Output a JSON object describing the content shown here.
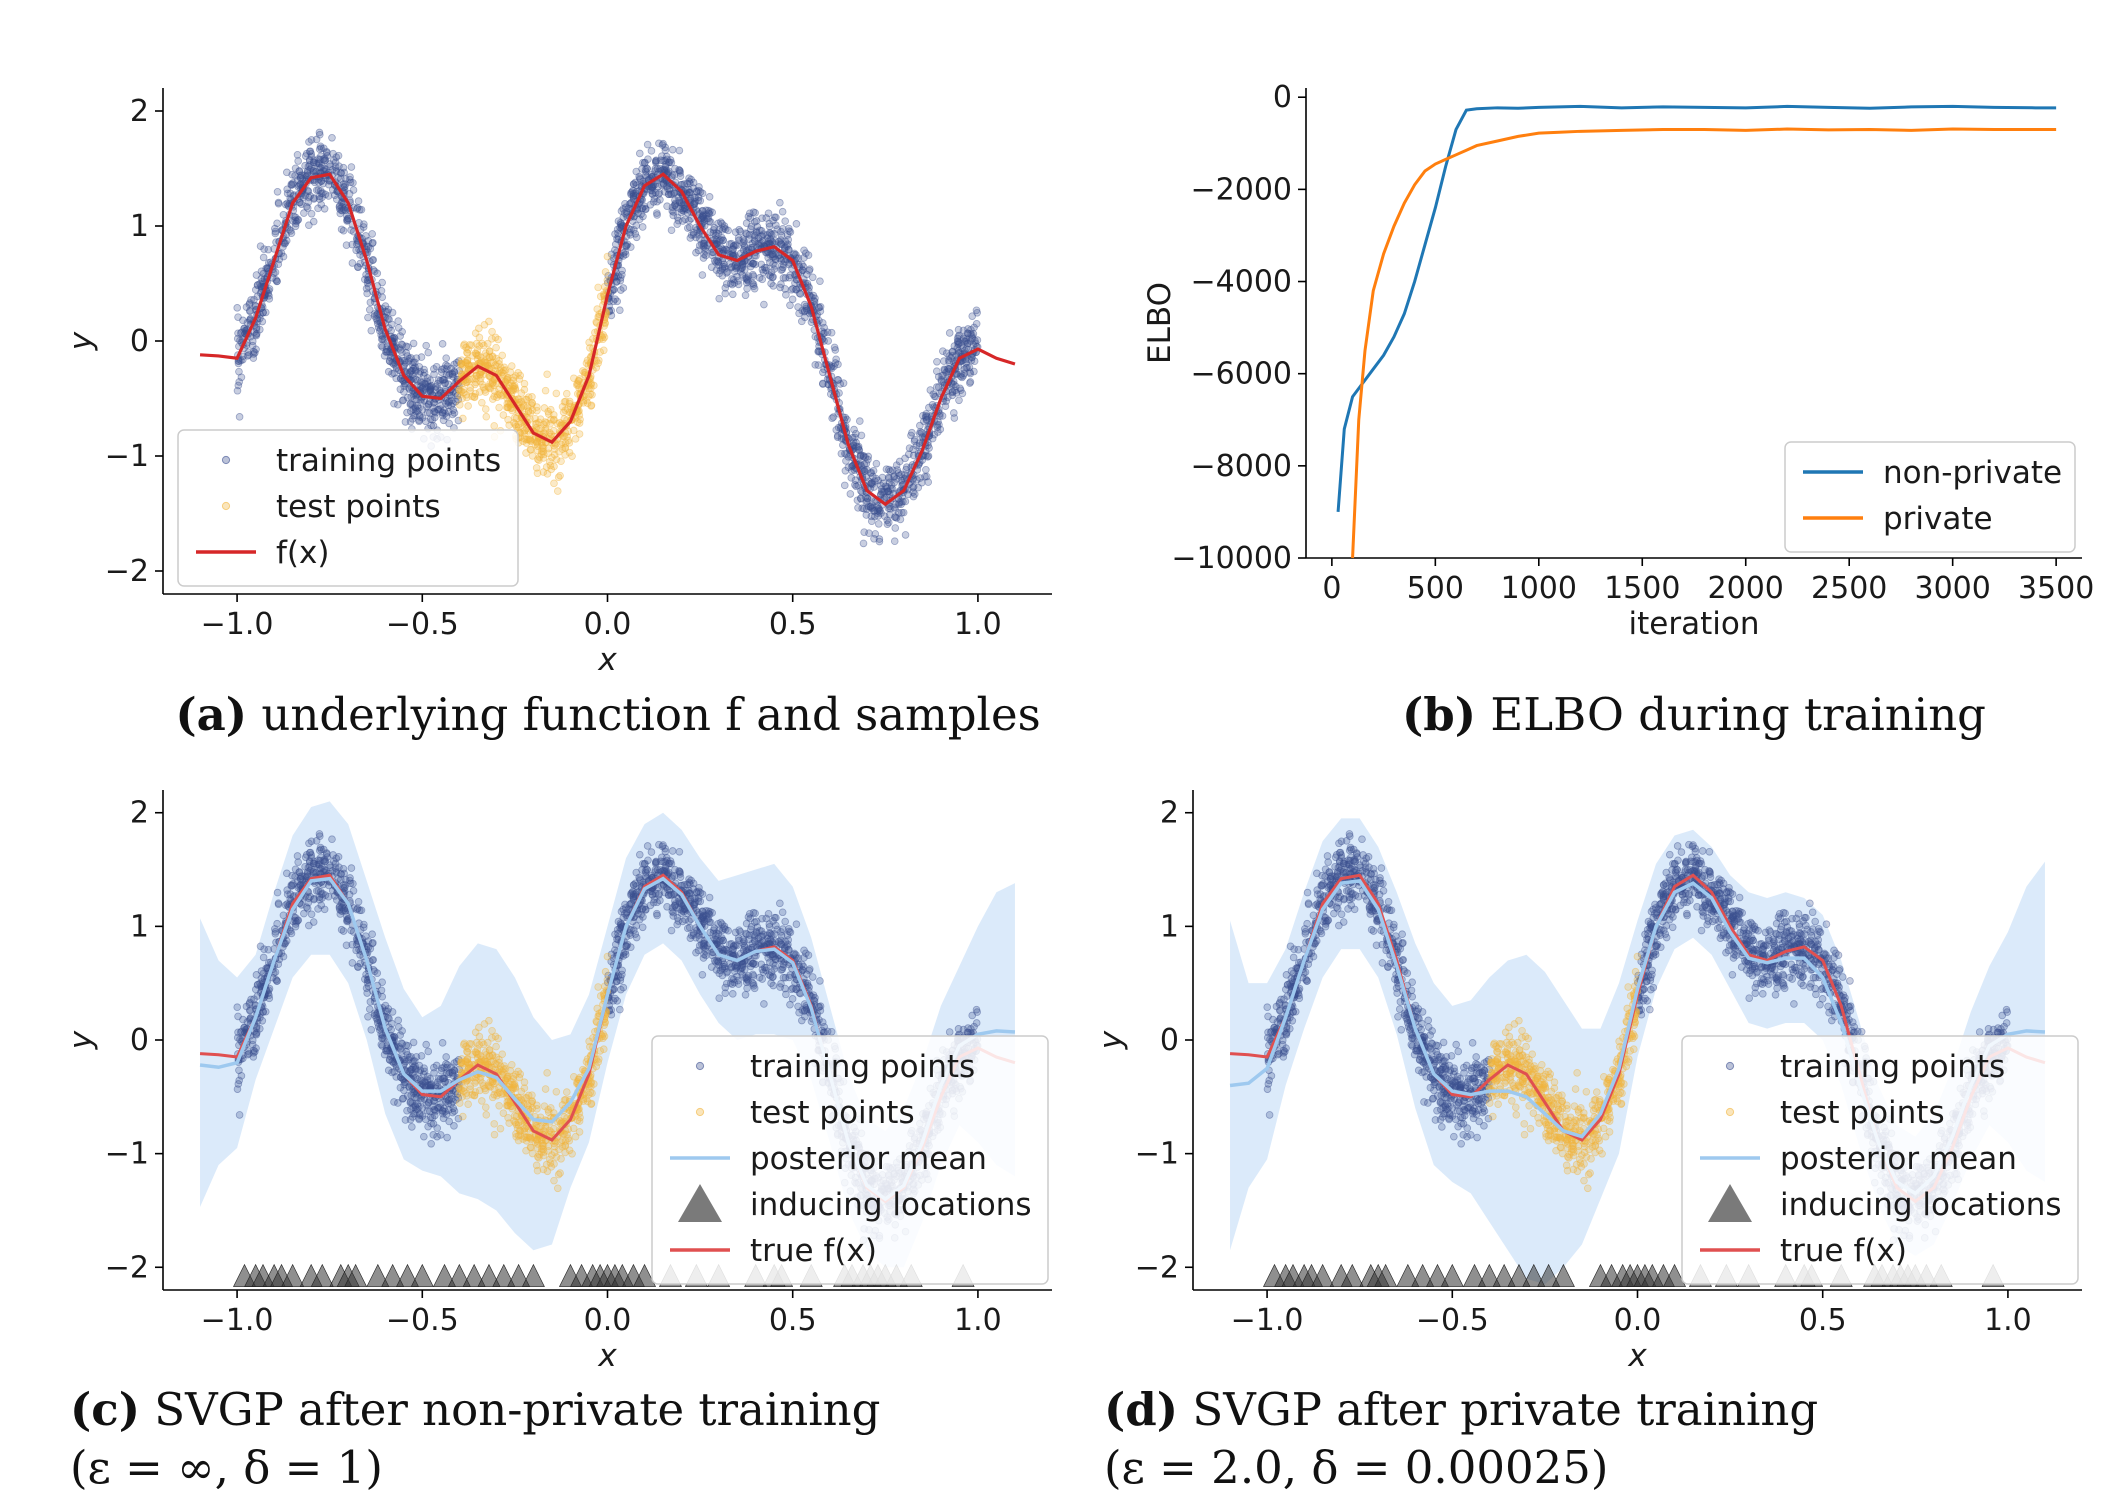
{
  "chart_data": [
    {
      "id": "a",
      "type": "scatter",
      "caption_tag": "(a)",
      "caption": "underlying function f and samples",
      "xlabel": "x",
      "ylabel": "y",
      "xlim": [
        -1.2,
        1.2
      ],
      "ylim": [
        -2.2,
        2.2
      ],
      "xticks": [
        -1.0,
        -0.5,
        0.0,
        0.5,
        1.0
      ],
      "xtick_labels": [
        "−1.0",
        "−0.5",
        "0.0",
        "0.5",
        "1.0"
      ],
      "yticks": [
        -2,
        -1,
        0,
        1,
        2
      ],
      "ytick_labels": [
        "−2",
        "−1",
        "0",
        "1",
        "2"
      ],
      "legend_position": "lower-left",
      "series": [
        {
          "name": "training points",
          "kind": "points",
          "color": "#3b4f8f",
          "x_ranges": [
            [
              -1.0,
              -0.4
            ],
            [
              0.0,
              1.0
            ]
          ],
          "noise": 0.16
        },
        {
          "name": "test points",
          "kind": "points",
          "color": "#f2b43b",
          "x_ranges": [
            [
              -0.4,
              0.0
            ]
          ],
          "noise": 0.16
        },
        {
          "name": "f(x)",
          "kind": "line",
          "color": "#d62728",
          "x": [
            -1.1,
            -1.05,
            -1.0,
            -0.95,
            -0.9,
            -0.85,
            -0.8,
            -0.75,
            -0.7,
            -0.65,
            -0.6,
            -0.55,
            -0.5,
            -0.45,
            -0.4,
            -0.35,
            -0.3,
            -0.25,
            -0.2,
            -0.15,
            -0.1,
            -0.05,
            0.0,
            0.05,
            0.1,
            0.15,
            0.2,
            0.25,
            0.3,
            0.35,
            0.4,
            0.45,
            0.5,
            0.55,
            0.6,
            0.65,
            0.7,
            0.75,
            0.8,
            0.85,
            0.9,
            0.95,
            1.0,
            1.05,
            1.1
          ],
          "y": [
            -0.12,
            -0.13,
            -0.15,
            0.2,
            0.7,
            1.2,
            1.42,
            1.45,
            1.2,
            0.7,
            0.1,
            -0.3,
            -0.48,
            -0.5,
            -0.35,
            -0.22,
            -0.3,
            -0.55,
            -0.8,
            -0.88,
            -0.7,
            -0.3,
            0.4,
            1.0,
            1.35,
            1.45,
            1.3,
            1.0,
            0.75,
            0.7,
            0.78,
            0.82,
            0.7,
            0.3,
            -0.3,
            -0.9,
            -1.3,
            -1.42,
            -1.3,
            -0.95,
            -0.5,
            -0.15,
            -0.07,
            -0.15,
            -0.2
          ]
        }
      ]
    },
    {
      "id": "b",
      "type": "line",
      "caption_tag": "(b)",
      "caption": "ELBO during training",
      "xlabel": "iteration",
      "ylabel": "ELBO",
      "xlim": [
        -125,
        3625
      ],
      "ylim": [
        -10000,
        200
      ],
      "xticks": [
        0,
        500,
        1000,
        1500,
        2000,
        2500,
        3000,
        3500
      ],
      "xtick_labels": [
        "0",
        "500",
        "1000",
        "1500",
        "2000",
        "2500",
        "3000",
        "3500"
      ],
      "yticks": [
        0,
        -2000,
        -4000,
        -6000,
        -8000,
        -10000
      ],
      "ytick_labels": [
        "0",
        "−2000",
        "−4000",
        "−6000",
        "−8000",
        "−10000"
      ],
      "legend_position": "lower-right",
      "series": [
        {
          "name": "non-private",
          "color": "#1f77b4",
          "x": [
            30,
            60,
            100,
            150,
            200,
            250,
            300,
            350,
            400,
            450,
            500,
            550,
            600,
            650,
            700,
            800,
            900,
            1000,
            1200,
            1400,
            1600,
            1800,
            2000,
            2200,
            2400,
            2600,
            2800,
            3000,
            3200,
            3400,
            3500
          ],
          "y": [
            -9000,
            -7200,
            -6500,
            -6200,
            -5900,
            -5600,
            -5200,
            -4700,
            -4000,
            -3200,
            -2400,
            -1500,
            -700,
            -280,
            -250,
            -230,
            -240,
            -220,
            -200,
            -230,
            -210,
            -220,
            -230,
            -200,
            -220,
            -240,
            -210,
            -200,
            -220,
            -230,
            -230
          ]
        },
        {
          "name": "private",
          "color": "#ff7f0e",
          "x": [
            100,
            130,
            160,
            200,
            250,
            300,
            350,
            400,
            450,
            500,
            550,
            600,
            650,
            700,
            800,
            900,
            1000,
            1100,
            1200,
            1400,
            1600,
            1800,
            2000,
            2200,
            2400,
            2600,
            2800,
            3000,
            3200,
            3400,
            3500
          ],
          "y": [
            -10000,
            -7000,
            -5500,
            -4200,
            -3400,
            -2800,
            -2300,
            -1900,
            -1600,
            -1450,
            -1350,
            -1250,
            -1150,
            -1050,
            -950,
            -850,
            -780,
            -760,
            -740,
            -720,
            -700,
            -700,
            -720,
            -690,
            -710,
            -700,
            -720,
            -690,
            -700,
            -700,
            -700
          ]
        }
      ]
    },
    {
      "id": "c",
      "type": "scatter",
      "caption_tag": "(c)",
      "caption": "SVGP after non-private training",
      "caption_line2": "(ε = ∞, δ = 1)",
      "xlabel": "x",
      "ylabel": "y",
      "xlim": [
        -1.2,
        1.2
      ],
      "ylim": [
        -2.2,
        2.2
      ],
      "xticks": [
        -1.0,
        -0.5,
        0.0,
        0.5,
        1.0
      ],
      "xtick_labels": [
        "−1.0",
        "−0.5",
        "0.0",
        "0.5",
        "1.0"
      ],
      "yticks": [
        -2,
        -1,
        0,
        1,
        2
      ],
      "ytick_labels": [
        "−2",
        "−1",
        "0",
        "1",
        "2"
      ],
      "legend_position": "lower-right",
      "series": [
        {
          "name": "training points",
          "kind": "points",
          "color": "#3b4f8f"
        },
        {
          "name": "test points",
          "kind": "points",
          "color": "#f2b43b"
        },
        {
          "name": "posterior mean",
          "kind": "line",
          "color": "#9ec9ef"
        },
        {
          "name": "inducing locations",
          "kind": "markers",
          "color": "#333333",
          "x": [
            -0.98,
            -0.95,
            -0.93,
            -0.9,
            -0.88,
            -0.85,
            -0.8,
            -0.77,
            -0.72,
            -0.7,
            -0.68,
            -0.62,
            -0.58,
            -0.54,
            -0.5,
            -0.44,
            -0.4,
            -0.36,
            -0.32,
            -0.28,
            -0.24,
            -0.2,
            -0.1,
            -0.07,
            -0.04,
            -0.02,
            0.0,
            0.02,
            0.04,
            0.07,
            0.1,
            0.17,
            0.24,
            0.3,
            0.4,
            0.45,
            0.47,
            0.55,
            0.64,
            0.66,
            0.69,
            0.71,
            0.73,
            0.75,
            0.78,
            0.82,
            0.96
          ]
        },
        {
          "name": "true f(x)",
          "kind": "line",
          "color": "#e05050"
        }
      ],
      "posterior": {
        "x": [
          -1.1,
          -1.05,
          -1.0,
          -0.95,
          -0.9,
          -0.85,
          -0.8,
          -0.75,
          -0.7,
          -0.65,
          -0.6,
          -0.55,
          -0.5,
          -0.45,
          -0.4,
          -0.35,
          -0.3,
          -0.25,
          -0.2,
          -0.15,
          -0.1,
          -0.05,
          0.0,
          0.05,
          0.1,
          0.15,
          0.2,
          0.25,
          0.3,
          0.35,
          0.4,
          0.45,
          0.5,
          0.55,
          0.6,
          0.65,
          0.7,
          0.75,
          0.8,
          0.85,
          0.9,
          0.95,
          1.0,
          1.05,
          1.1
        ],
        "mean": [
          -0.22,
          -0.24,
          -0.2,
          0.2,
          0.7,
          1.15,
          1.4,
          1.42,
          1.2,
          0.7,
          0.1,
          -0.3,
          -0.45,
          -0.45,
          -0.35,
          -0.28,
          -0.33,
          -0.52,
          -0.7,
          -0.72,
          -0.55,
          -0.25,
          0.4,
          1.0,
          1.33,
          1.42,
          1.28,
          1.0,
          0.75,
          0.7,
          0.78,
          0.8,
          0.68,
          0.28,
          -0.3,
          -0.9,
          -1.28,
          -1.4,
          -1.28,
          -0.9,
          -0.4,
          -0.05,
          0.05,
          0.08,
          0.07
        ],
        "upper": [
          1.07,
          0.7,
          0.55,
          0.75,
          1.3,
          1.8,
          2.05,
          2.1,
          1.9,
          1.4,
          0.9,
          0.45,
          0.2,
          0.3,
          0.65,
          0.85,
          0.8,
          0.55,
          0.2,
          0.0,
          0.05,
          0.4,
          1.0,
          1.6,
          1.9,
          2.0,
          1.85,
          1.6,
          1.4,
          1.45,
          1.5,
          1.55,
          1.35,
          0.9,
          0.3,
          -0.3,
          -0.7,
          -0.8,
          -0.6,
          -0.2,
          0.3,
          0.65,
          1.0,
          1.3,
          1.38
        ],
        "lower": [
          -1.47,
          -1.1,
          -0.95,
          -0.35,
          0.1,
          0.55,
          0.75,
          0.75,
          0.5,
          0.0,
          -0.65,
          -1.05,
          -1.15,
          -1.2,
          -1.35,
          -1.4,
          -1.5,
          -1.7,
          -1.85,
          -1.8,
          -1.3,
          -0.9,
          -0.2,
          0.4,
          0.75,
          0.85,
          0.7,
          0.4,
          0.15,
          0.0,
          0.05,
          0.05,
          0.0,
          -0.35,
          -0.9,
          -1.5,
          -1.85,
          -2.0,
          -2.0,
          -1.6,
          -1.1,
          -0.75,
          -0.9,
          -1.1,
          -1.2
        ]
      }
    },
    {
      "id": "d",
      "type": "scatter",
      "caption_tag": "(d)",
      "caption": "SVGP after private training",
      "caption_line2": "(ε = 2.0, δ = 0.00025)",
      "xlabel": "x",
      "ylabel": "y",
      "xlim": [
        -1.2,
        1.2
      ],
      "ylim": [
        -2.2,
        2.2
      ],
      "xticks": [
        -1.0,
        -0.5,
        0.0,
        0.5,
        1.0
      ],
      "xtick_labels": [
        "−1.0",
        "−0.5",
        "0.0",
        "0.5",
        "1.0"
      ],
      "yticks": [
        -2,
        -1,
        0,
        1,
        2
      ],
      "ytick_labels": [
        "−2",
        "−1",
        "0",
        "1",
        "2"
      ],
      "legend_position": "lower-right",
      "series": [
        {
          "name": "training points",
          "kind": "points",
          "color": "#3b4f8f"
        },
        {
          "name": "test points",
          "kind": "points",
          "color": "#f2b43b"
        },
        {
          "name": "posterior mean",
          "kind": "line",
          "color": "#9ec9ef"
        },
        {
          "name": "inducing locations",
          "kind": "markers",
          "color": "#333333",
          "x": [
            -0.98,
            -0.95,
            -0.93,
            -0.9,
            -0.88,
            -0.85,
            -0.8,
            -0.77,
            -0.72,
            -0.7,
            -0.68,
            -0.62,
            -0.58,
            -0.54,
            -0.5,
            -0.44,
            -0.4,
            -0.36,
            -0.32,
            -0.28,
            -0.24,
            -0.2,
            -0.1,
            -0.07,
            -0.04,
            -0.02,
            0.0,
            0.02,
            0.04,
            0.07,
            0.1,
            0.17,
            0.24,
            0.3,
            0.4,
            0.45,
            0.47,
            0.55,
            0.64,
            0.66,
            0.69,
            0.71,
            0.73,
            0.75,
            0.78,
            0.82,
            0.96
          ]
        },
        {
          "name": "true f(x)",
          "kind": "line",
          "color": "#e05050"
        }
      ],
      "posterior": {
        "x": [
          -1.1,
          -1.05,
          -1.0,
          -0.95,
          -0.9,
          -0.85,
          -0.8,
          -0.75,
          -0.7,
          -0.65,
          -0.6,
          -0.55,
          -0.5,
          -0.45,
          -0.4,
          -0.35,
          -0.3,
          -0.25,
          -0.2,
          -0.15,
          -0.1,
          -0.05,
          0.0,
          0.05,
          0.1,
          0.15,
          0.2,
          0.25,
          0.3,
          0.35,
          0.4,
          0.45,
          0.5,
          0.55,
          0.6,
          0.65,
          0.7,
          0.75,
          0.8,
          0.85,
          0.9,
          0.95,
          1.0,
          1.05,
          1.1
        ],
        "mean": [
          -0.4,
          -0.38,
          -0.25,
          0.2,
          0.7,
          1.15,
          1.38,
          1.4,
          1.15,
          0.65,
          0.1,
          -0.3,
          -0.45,
          -0.48,
          -0.45,
          -0.45,
          -0.5,
          -0.65,
          -0.8,
          -0.85,
          -0.65,
          -0.25,
          0.45,
          1.0,
          1.3,
          1.38,
          1.25,
          0.95,
          0.72,
          0.68,
          0.72,
          0.72,
          0.55,
          0.15,
          -0.4,
          -0.9,
          -1.25,
          -1.35,
          -1.2,
          -0.85,
          -0.4,
          -0.05,
          0.05,
          0.08,
          0.07
        ],
        "upper": [
          1.05,
          0.5,
          0.5,
          0.8,
          1.3,
          1.75,
          1.95,
          1.95,
          1.7,
          1.3,
          0.85,
          0.5,
          0.3,
          0.35,
          0.55,
          0.7,
          0.75,
          0.6,
          0.35,
          0.1,
          0.1,
          0.5,
          1.05,
          1.55,
          1.8,
          1.85,
          1.7,
          1.45,
          1.3,
          1.25,
          1.3,
          1.25,
          1.1,
          0.7,
          0.15,
          -0.4,
          -0.75,
          -0.85,
          -0.65,
          -0.25,
          0.25,
          0.65,
          0.95,
          1.35,
          1.57
        ],
        "lower": [
          -1.85,
          -1.3,
          -1.05,
          -0.4,
          0.1,
          0.55,
          0.8,
          0.8,
          0.55,
          0.05,
          -0.6,
          -1.1,
          -1.25,
          -1.35,
          -1.6,
          -1.85,
          -2.1,
          -2.15,
          -2.0,
          -1.8,
          -1.4,
          -1.0,
          -0.15,
          0.45,
          0.8,
          0.9,
          0.75,
          0.45,
          0.15,
          0.1,
          0.15,
          0.15,
          0.0,
          -0.4,
          -0.95,
          -1.45,
          -1.8,
          -1.9,
          -1.8,
          -1.45,
          -1.05,
          -0.75,
          -0.9,
          -1.15,
          -1.25
        ]
      }
    }
  ]
}
